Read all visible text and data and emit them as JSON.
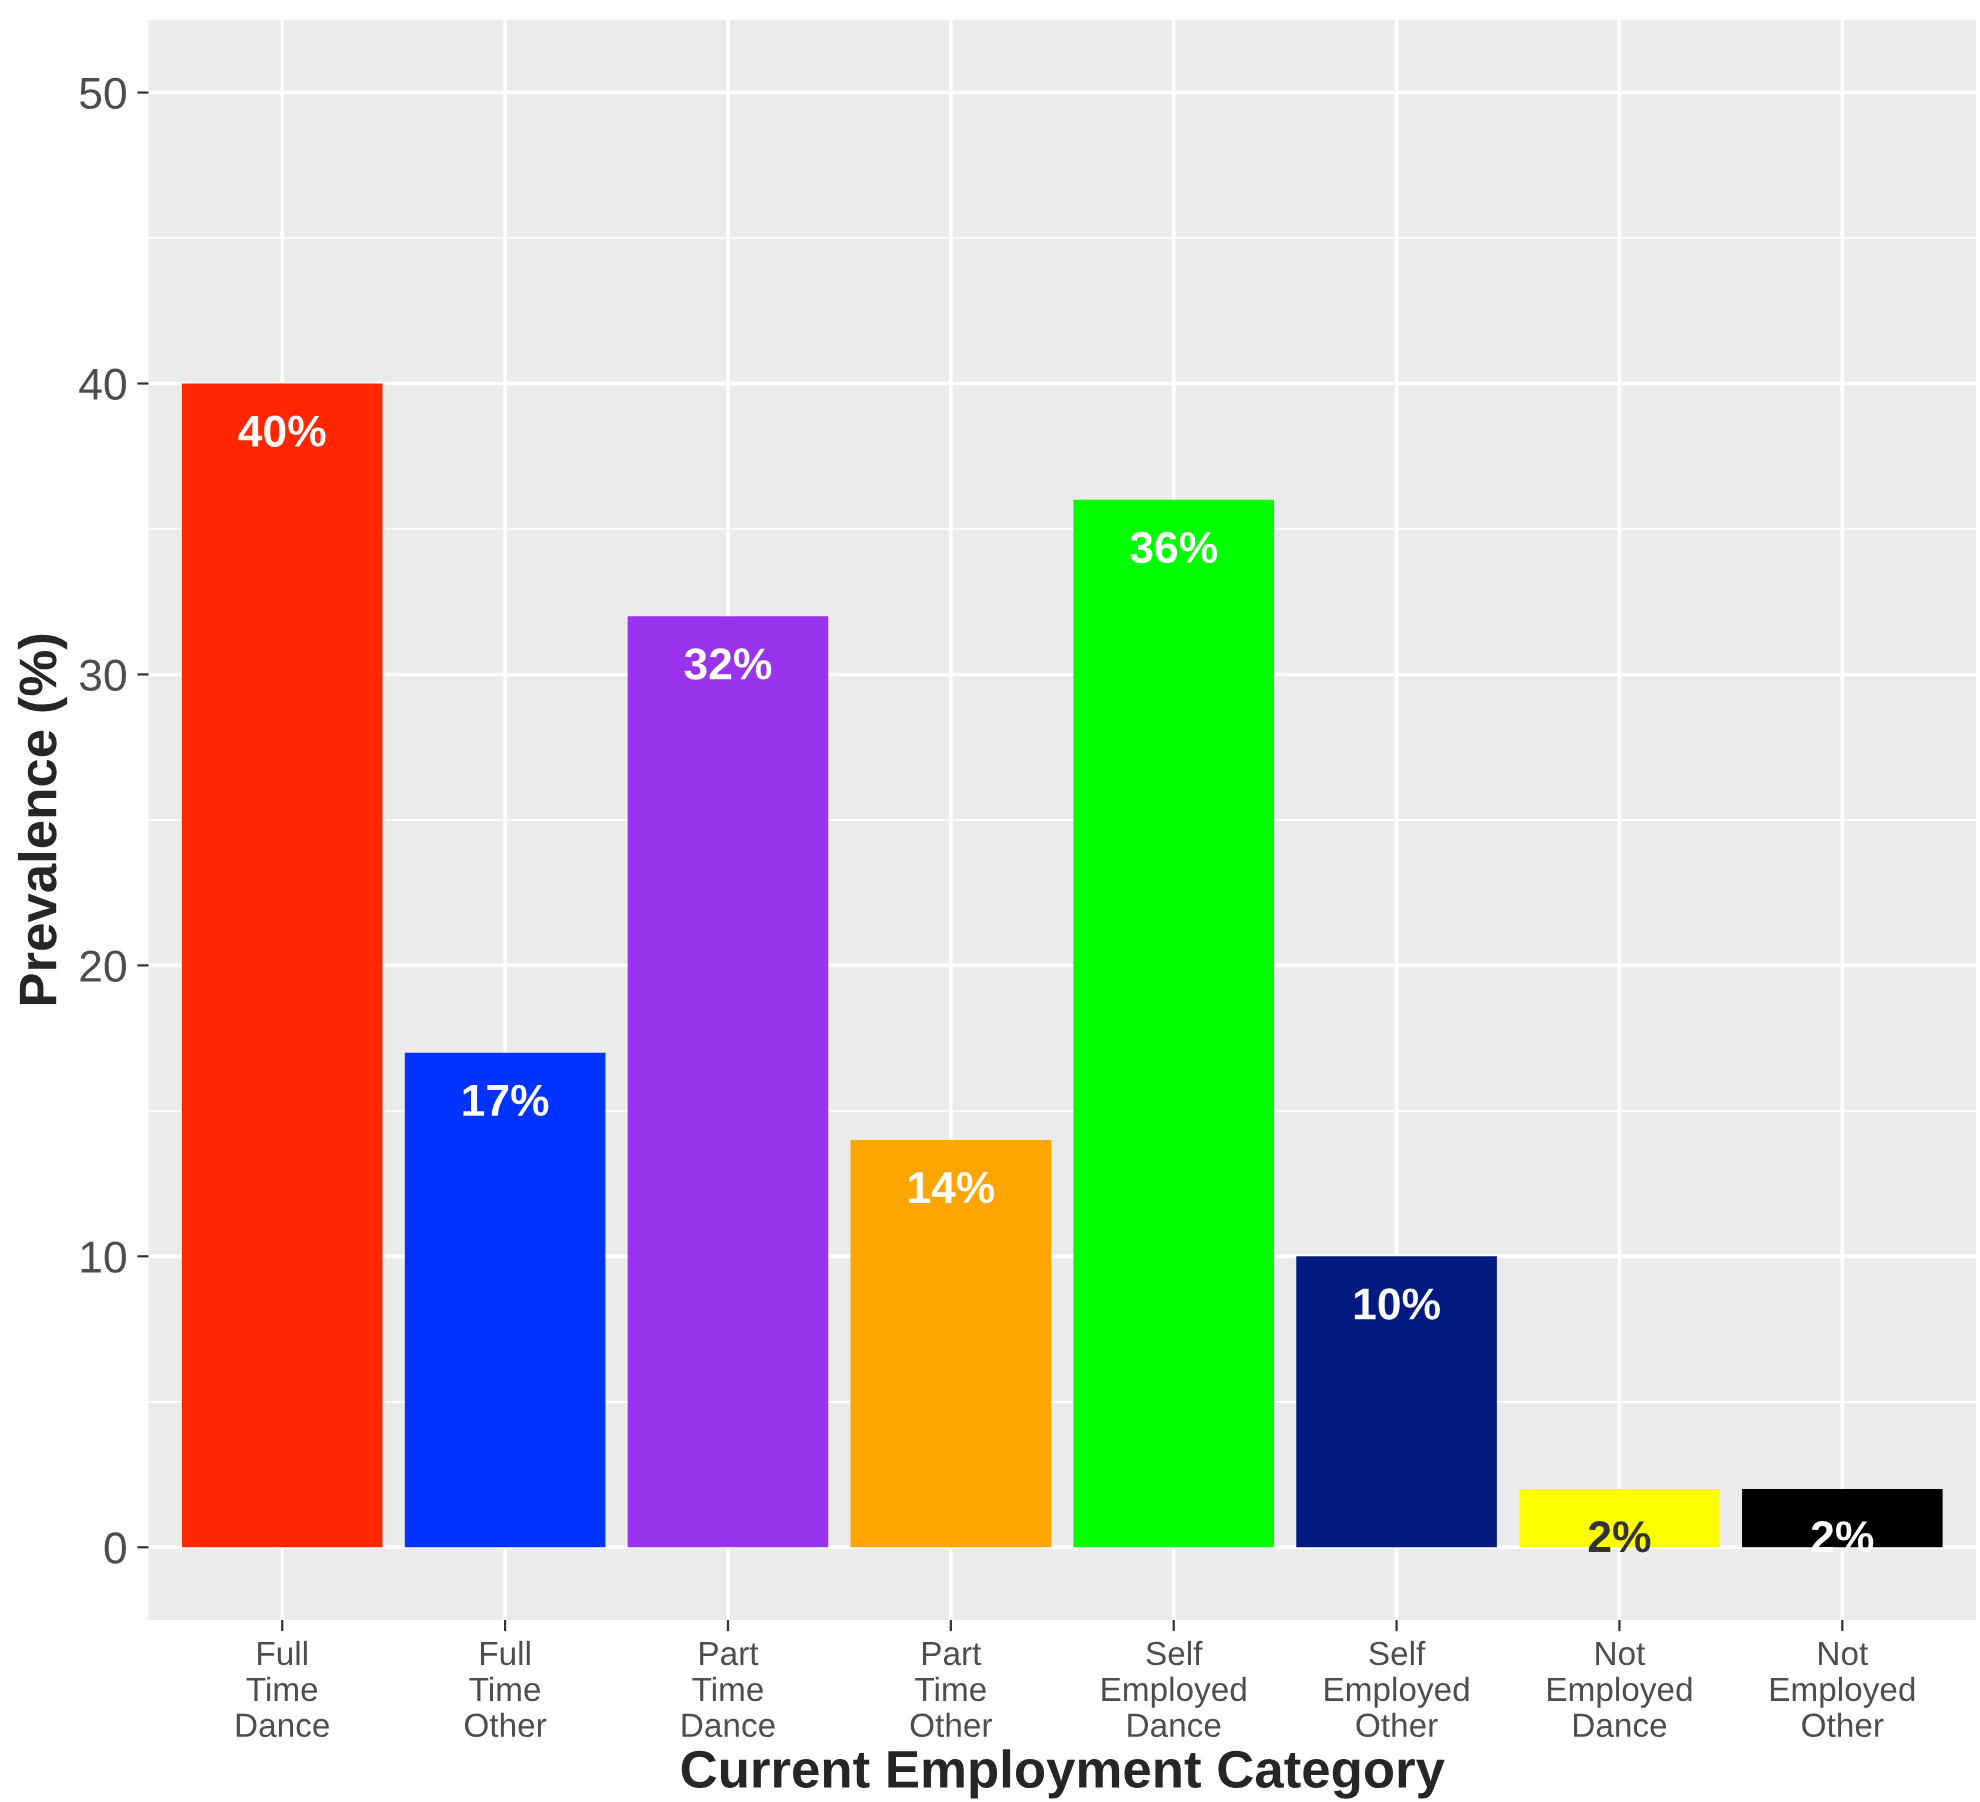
{
  "chart_data": {
    "type": "bar",
    "xlabel": "Current Employment Category",
    "ylabel": "Prevalence (%)",
    "categories": [
      "Full\nTime\nDance",
      "Full\nTime\nOther",
      "Part\nTime\nDance",
      "Part\nTime\nOther",
      "Self\nEmployed\nDance",
      "Self\nEmployed\nOther",
      "Not\nEmployed\nDance",
      "Not\nEmployed\nOther"
    ],
    "values": [
      40,
      17,
      32,
      14,
      36,
      10,
      2,
      2
    ],
    "colors": [
      "#ff2600",
      "#0033ff",
      "#9933ee",
      "#ffa500",
      "#00ff00",
      "#001a80",
      "#ffff00",
      "#000000"
    ],
    "value_labels": [
      "40%",
      "17%",
      "32%",
      "14%",
      "36%",
      "10%",
      "2%",
      "2%"
    ],
    "ylim": [
      -2.5,
      52.5
    ],
    "yticks": [
      0,
      10,
      20,
      30,
      40,
      50
    ],
    "grid": true
  }
}
